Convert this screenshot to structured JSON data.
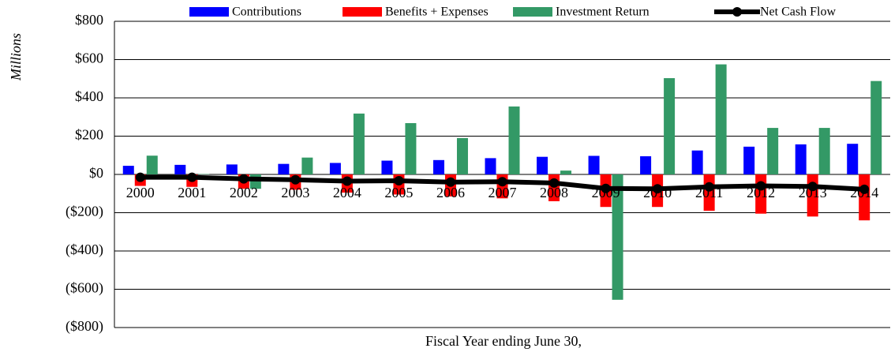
{
  "chart_data": {
    "type": "bar",
    "y_label": "Millions",
    "x_label": "Fiscal Year ending June 30,",
    "categories": [
      "2000",
      "2001",
      "2002",
      "2003",
      "2004",
      "2005",
      "2006",
      "2007",
      "2008",
      "2009",
      "2010",
      "2011",
      "2012",
      "2013",
      "2014"
    ],
    "series": [
      {
        "name": "Contributions",
        "color": "#0000ff",
        "values": [
          45,
          50,
          52,
          55,
          60,
          72,
          75,
          85,
          92,
          97,
          95,
          125,
          145,
          157,
          160
        ]
      },
      {
        "name": "Benefits + Expenses",
        "color": "#ff0000",
        "values": [
          -60,
          -65,
          -75,
          -80,
          -95,
          -105,
          -115,
          -125,
          -140,
          -170,
          -170,
          -190,
          -205,
          -220,
          -240
        ]
      },
      {
        "name": "Investment Return",
        "color": "#339966",
        "values": [
          98,
          2,
          -75,
          88,
          318,
          268,
          190,
          355,
          20,
          -655,
          503,
          575,
          243,
          243,
          488
        ]
      },
      {
        "name": "Net Cash Flow",
        "color": "#000000",
        "type": "line",
        "values": [
          -15,
          -15,
          -23,
          -28,
          -35,
          -33,
          -40,
          -38,
          -45,
          -73,
          -75,
          -65,
          -60,
          -63,
          -78
        ]
      }
    ],
    "ylim": [
      -800,
      800
    ],
    "yticks": [
      {
        "value": -800,
        "label": "($800)"
      },
      {
        "value": -600,
        "label": "($600)"
      },
      {
        "value": -400,
        "label": "($400)"
      },
      {
        "value": -200,
        "label": "($200)"
      },
      {
        "value": 0,
        "label": "$0"
      },
      {
        "value": 200,
        "label": "$200"
      },
      {
        "value": 400,
        "label": "$400"
      },
      {
        "value": 600,
        "label": "$600"
      },
      {
        "value": 800,
        "label": "$800"
      }
    ],
    "grid": true,
    "legend": "top"
  }
}
